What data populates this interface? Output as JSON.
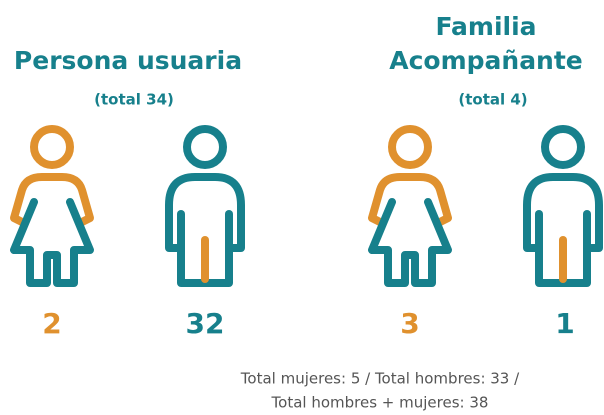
{
  "groups": [
    {
      "title_lines": [
        "Persona usuaria"
      ],
      "subtitle": "(total 34)",
      "women": "2",
      "men": "32"
    },
    {
      "title_lines": [
        "Familia",
        "Acompañante"
      ],
      "subtitle": "(total 4)",
      "women": "3",
      "men": "1"
    }
  ],
  "footer": [
    "Total mujeres: 5 / Total hombres: 33 /",
    "Total hombres + mujeres: 38"
  ]
}
